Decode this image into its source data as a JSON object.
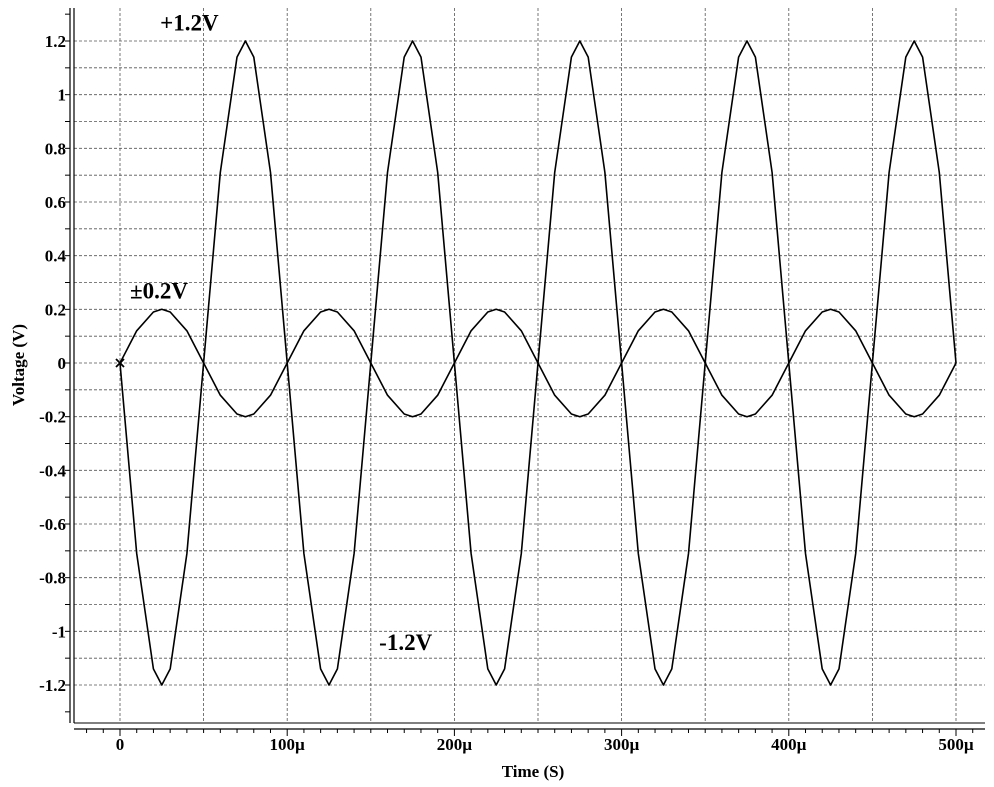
{
  "chart_data": {
    "type": "line",
    "title": "",
    "xlabel": "Time (S)",
    "ylabel": "Voltage (V)",
    "xlim": [
      0,
      500
    ],
    "ylim": [
      -1.3,
      1.3
    ],
    "x_unit": "µs",
    "grid": true,
    "x_ticks": [
      {
        "value": 0,
        "label": "0"
      },
      {
        "value": 100,
        "label": "100µ"
      },
      {
        "value": 200,
        "label": "200µ"
      },
      {
        "value": 300,
        "label": "300µ"
      },
      {
        "value": 400,
        "label": "400µ"
      },
      {
        "value": 500,
        "label": "500µ"
      }
    ],
    "y_ticks": [
      {
        "value": 1.2,
        "label": "1.2"
      },
      {
        "value": 1.0,
        "label": "1"
      },
      {
        "value": 0.8,
        "label": "0.8"
      },
      {
        "value": 0.6,
        "label": "0.6"
      },
      {
        "value": 0.4,
        "label": "0.4"
      },
      {
        "value": 0.2,
        "label": "0.2"
      },
      {
        "value": 0.0,
        "label": "0"
      },
      {
        "value": -0.2,
        "label": "-0.2"
      },
      {
        "value": -0.4,
        "label": "-0.4"
      },
      {
        "value": -0.6,
        "label": "-0.6"
      },
      {
        "value": -0.8,
        "label": "-0.8"
      },
      {
        "value": -1.0,
        "label": "-1"
      },
      {
        "value": -1.2,
        "label": "-1.2"
      }
    ],
    "series": [
      {
        "x": [
          0,
          10,
          20,
          25,
          30,
          40,
          50,
          60,
          70,
          75,
          80,
          90,
          100,
          110,
          120,
          125,
          130,
          140,
          150,
          160,
          170,
          175,
          180,
          190,
          200,
          210,
          220,
          225,
          230,
          240,
          250,
          260,
          270,
          275,
          280,
          290,
          300,
          310,
          320,
          325,
          330,
          340,
          350,
          360,
          370,
          375,
          380,
          390,
          400,
          410,
          420,
          425,
          430,
          440,
          450,
          460,
          470,
          475,
          480,
          490,
          500
        ],
        "values": [
          0,
          -0.71,
          -1.14,
          -1.2,
          -1.14,
          -0.71,
          0,
          0.71,
          1.14,
          1.2,
          1.14,
          0.71,
          0,
          -0.71,
          -1.14,
          -1.2,
          -1.14,
          -0.71,
          0,
          0.71,
          1.14,
          1.2,
          1.14,
          0.71,
          0,
          -0.71,
          -1.14,
          -1.2,
          -1.14,
          -0.71,
          0,
          0.71,
          1.14,
          1.2,
          1.14,
          0.71,
          0,
          -0.71,
          -1.14,
          -1.2,
          -1.14,
          -0.71,
          0,
          0.71,
          1.14,
          1.2,
          1.14,
          0.71,
          0,
          -0.71,
          -1.14,
          -1.2,
          -1.14,
          -0.71,
          0,
          0.71,
          1.14,
          1.2,
          1.14,
          0.71,
          0
        ],
        "color": "#000000"
      },
      {
        "x": [
          0,
          10,
          20,
          25,
          30,
          40,
          50,
          60,
          70,
          75,
          80,
          90,
          100,
          110,
          120,
          125,
          130,
          140,
          150,
          160,
          170,
          175,
          180,
          190,
          200,
          210,
          220,
          225,
          230,
          240,
          250,
          260,
          270,
          275,
          280,
          290,
          300,
          310,
          320,
          325,
          330,
          340,
          350,
          360,
          370,
          375,
          380,
          390,
          400,
          410,
          420,
          425,
          430,
          440,
          450,
          460,
          470,
          475,
          480,
          490,
          500
        ],
        "values": [
          0,
          0.12,
          0.19,
          0.2,
          0.19,
          0.12,
          0,
          -0.12,
          -0.19,
          -0.2,
          -0.19,
          -0.12,
          0,
          0.12,
          0.19,
          0.2,
          0.19,
          0.12,
          0,
          -0.12,
          -0.19,
          -0.2,
          -0.19,
          -0.12,
          0,
          0.12,
          0.19,
          0.2,
          0.19,
          0.12,
          0,
          -0.12,
          -0.19,
          -0.2,
          -0.19,
          -0.12,
          0,
          0.12,
          0.19,
          0.2,
          0.19,
          0.12,
          0,
          -0.12,
          -0.19,
          -0.2,
          -0.19,
          -0.12,
          0,
          0.12,
          0.19,
          0.2,
          0.19,
          0.12,
          0,
          -0.12,
          -0.19,
          -0.2,
          -0.19,
          -0.12,
          0
        ],
        "color": "#000000"
      }
    ],
    "annotations": [
      {
        "text": "+1.2V",
        "x": 24,
        "y": 1.24
      },
      {
        "text": "±0.2V",
        "x": 6,
        "y": 0.24
      },
      {
        "text": "-1.2V",
        "x": 155,
        "y": -1.07
      }
    ],
    "marker": {
      "symbol": "×",
      "x": 0,
      "y": 0
    }
  },
  "colors": {
    "line": "#000000",
    "grid": "#555555",
    "background": "#ffffff"
  }
}
